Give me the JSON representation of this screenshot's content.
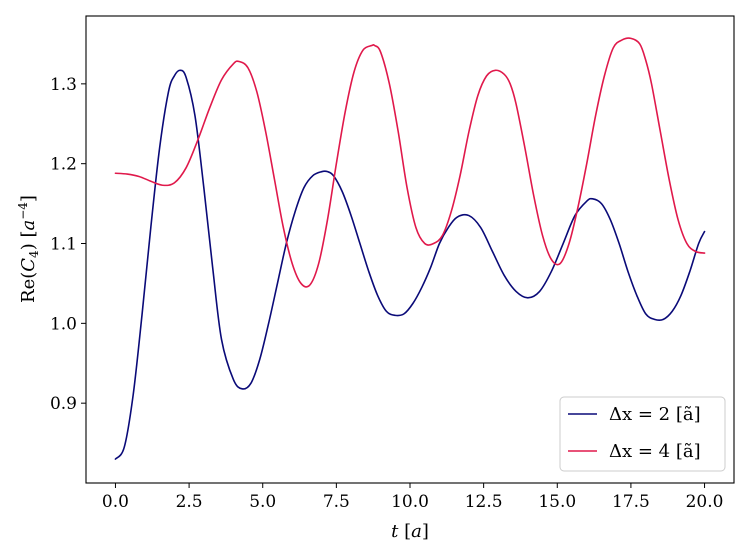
{
  "chart_data": {
    "type": "line",
    "title": "",
    "xlabel": "t [a]",
    "ylabel": "Re(C4) [a^-4]",
    "xlim": [
      -1.0,
      21.0
    ],
    "ylim": [
      0.8,
      1.385
    ],
    "x_ticks": [
      0.0,
      2.5,
      5.0,
      7.5,
      10.0,
      12.5,
      15.0,
      17.5,
      20.0
    ],
    "x_tick_labels": [
      "0.0",
      "2.5",
      "5.0",
      "7.5",
      "10.0",
      "12.5",
      "15.0",
      "17.5",
      "20.0"
    ],
    "y_ticks": [
      0.9,
      1.0,
      1.1,
      1.2,
      1.3
    ],
    "y_tick_labels": [
      "0.9",
      "1.0",
      "1.1",
      "1.2",
      "1.3"
    ],
    "grid": false,
    "legend_position": "lower-right",
    "series": [
      {
        "name": "Δx = 2 [ã]",
        "color": "#0a0a78",
        "x": [
          0.0,
          0.3,
          0.6,
          0.9,
          1.2,
          1.5,
          1.8,
          2.0,
          2.2,
          2.4,
          2.7,
          3.0,
          3.3,
          3.6,
          4.0,
          4.3,
          4.6,
          4.9,
          5.2,
          5.5,
          5.8,
          6.1,
          6.4,
          6.7,
          7.0,
          7.2,
          7.4,
          7.7,
          8.0,
          8.3,
          8.6,
          8.9,
          9.2,
          9.5,
          9.8,
          10.1,
          10.4,
          10.7,
          11.0,
          11.3,
          11.6,
          12.0,
          12.4,
          12.8,
          13.2,
          13.6,
          14.0,
          14.4,
          14.8,
          15.2,
          15.6,
          16.0,
          16.2,
          16.5,
          16.8,
          17.1,
          17.4,
          17.7,
          18.0,
          18.3,
          18.6,
          18.9,
          19.2,
          19.5,
          19.8,
          20.0
        ],
        "values": [
          0.83,
          0.845,
          0.91,
          1.01,
          1.12,
          1.22,
          1.29,
          1.31,
          1.317,
          1.308,
          1.26,
          1.17,
          1.07,
          0.98,
          0.93,
          0.918,
          0.925,
          0.955,
          1.0,
          1.05,
          1.1,
          1.14,
          1.17,
          1.185,
          1.19,
          1.19,
          1.185,
          1.165,
          1.135,
          1.1,
          1.065,
          1.035,
          1.015,
          1.01,
          1.012,
          1.025,
          1.045,
          1.07,
          1.1,
          1.12,
          1.133,
          1.135,
          1.12,
          1.09,
          1.06,
          1.04,
          1.032,
          1.04,
          1.065,
          1.1,
          1.135,
          1.153,
          1.156,
          1.15,
          1.13,
          1.1,
          1.065,
          1.035,
          1.012,
          1.005,
          1.005,
          1.015,
          1.035,
          1.065,
          1.1,
          1.115
        ]
      },
      {
        "name": "Δx = 4 [ã]",
        "color": "#e0194b",
        "x": [
          0.0,
          0.4,
          0.8,
          1.2,
          1.6,
          2.0,
          2.4,
          2.8,
          3.2,
          3.6,
          4.0,
          4.2,
          4.5,
          4.8,
          5.1,
          5.4,
          5.7,
          6.0,
          6.3,
          6.6,
          6.9,
          7.2,
          7.5,
          7.8,
          8.1,
          8.4,
          8.7,
          8.8,
          9.0,
          9.3,
          9.6,
          9.9,
          10.2,
          10.5,
          10.8,
          11.1,
          11.4,
          11.7,
          12.0,
          12.3,
          12.6,
          12.9,
          13.2,
          13.4,
          13.6,
          13.9,
          14.2,
          14.5,
          14.8,
          15.1,
          15.4,
          15.7,
          16.0,
          16.3,
          16.6,
          16.9,
          17.2,
          17.5,
          17.8,
          18.0,
          18.2,
          18.5,
          18.8,
          19.1,
          19.4,
          19.7,
          20.0
        ],
        "values": [
          1.188,
          1.187,
          1.184,
          1.178,
          1.173,
          1.176,
          1.195,
          1.23,
          1.27,
          1.305,
          1.325,
          1.328,
          1.32,
          1.29,
          1.24,
          1.18,
          1.12,
          1.075,
          1.05,
          1.048,
          1.075,
          1.13,
          1.2,
          1.265,
          1.315,
          1.342,
          1.348,
          1.348,
          1.34,
          1.3,
          1.24,
          1.17,
          1.12,
          1.1,
          1.1,
          1.11,
          1.14,
          1.185,
          1.24,
          1.285,
          1.31,
          1.317,
          1.312,
          1.3,
          1.275,
          1.22,
          1.16,
          1.11,
          1.08,
          1.075,
          1.1,
          1.145,
          1.2,
          1.26,
          1.31,
          1.345,
          1.355,
          1.357,
          1.35,
          1.33,
          1.3,
          1.24,
          1.18,
          1.13,
          1.1,
          1.09,
          1.088
        ]
      }
    ]
  }
}
